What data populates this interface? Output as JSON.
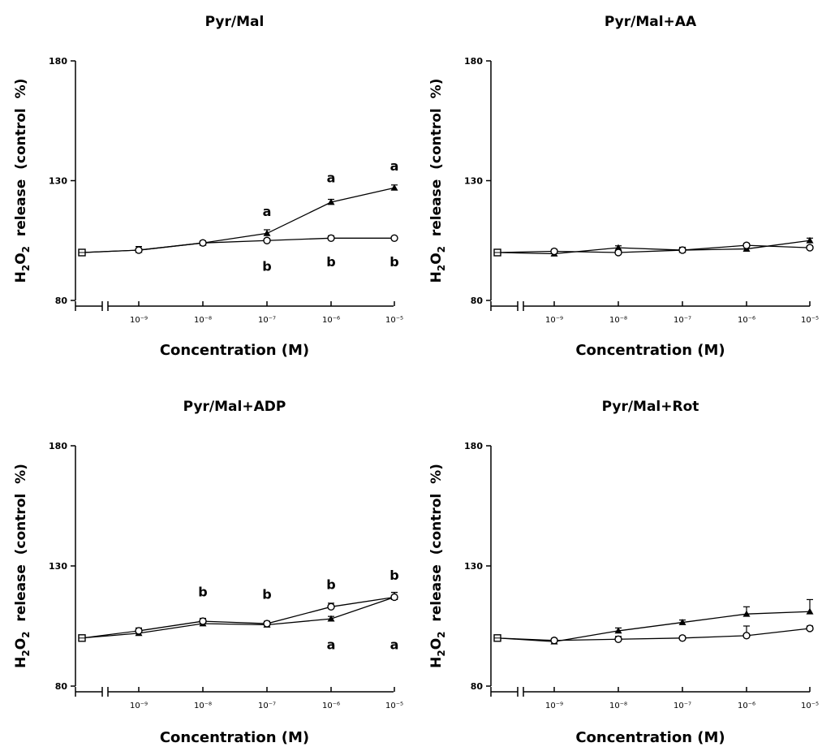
{
  "chart_data": [
    {
      "type": "line",
      "title": "Pyr/Mal",
      "xlabel": "Concentration (M)",
      "ylabel": "H2O2 release (control %)",
      "ylim": [
        80,
        180
      ],
      "yticks": [
        80,
        130,
        180
      ],
      "x_control": "control",
      "x": [
        1e-09,
        1e-08,
        1e-07,
        1e-06,
        1e-05
      ],
      "x_tick_labels": [
        "10⁻⁹",
        "10⁻⁸",
        "10⁻⁷",
        "10⁻⁶",
        "10⁻⁵"
      ],
      "control_value": 100,
      "series": [
        {
          "marker": "triangle",
          "values": [
            101,
            104,
            108,
            121,
            127
          ],
          "errors": [
            1.5,
            0.8,
            1.5,
            1.2,
            1.2
          ]
        },
        {
          "marker": "circle",
          "values": [
            101,
            104,
            105,
            106,
            106
          ],
          "errors": [
            1.5,
            0.8,
            0.8,
            1.0,
            0.6
          ]
        }
      ],
      "annotations": [
        {
          "x": 1e-07,
          "y": 117,
          "text": "a"
        },
        {
          "x": 1e-06,
          "y": 131,
          "text": "a"
        },
        {
          "x": 1e-05,
          "y": 136,
          "text": "a"
        },
        {
          "x": 1e-07,
          "y": 94,
          "text": "b"
        },
        {
          "x": 1e-06,
          "y": 96,
          "text": "b"
        },
        {
          "x": 1e-05,
          "y": 96,
          "text": "b"
        }
      ]
    },
    {
      "type": "line",
      "title": "Pyr/Mal+AA",
      "xlabel": "Concentration (M)",
      "ylabel": "H2O2 release (control %)",
      "ylim": [
        80,
        180
      ],
      "yticks": [
        80,
        130,
        180
      ],
      "x_control": "control",
      "x": [
        1e-09,
        1e-08,
        1e-07,
        1e-06,
        1e-05
      ],
      "x_tick_labels": [
        "10⁻⁹",
        "10⁻⁸",
        "10⁻⁷",
        "10⁻⁶",
        "10⁻⁵"
      ],
      "control_value": 100,
      "series": [
        {
          "marker": "triangle",
          "values": [
            99.5,
            102,
            101,
            101.5,
            105
          ],
          "errors": [
            0.8,
            0.8,
            1.2,
            0.8,
            1.0
          ]
        },
        {
          "marker": "circle",
          "values": [
            100.5,
            100,
            101,
            103,
            102
          ],
          "errors": [
            0.8,
            0.8,
            1.0,
            0.8,
            0.8
          ]
        }
      ],
      "annotations": []
    },
    {
      "type": "line",
      "title": "Pyr/Mal+ADP",
      "xlabel": "Concentration (M)",
      "ylabel": "H2O2 release (control %)",
      "ylim": [
        80,
        180
      ],
      "yticks": [
        80,
        130,
        180
      ],
      "x_control": "control",
      "x": [
        1e-09,
        1e-08,
        1e-07,
        1e-06,
        1e-05
      ],
      "x_tick_labels": [
        "10⁻⁹",
        "10⁻⁸",
        "10⁻⁷",
        "10⁻⁶",
        "10⁻⁵"
      ],
      "control_value": 100,
      "series": [
        {
          "marker": "triangle",
          "values": [
            102,
            106,
            105.5,
            108,
            117
          ],
          "errors": [
            1.0,
            1.5,
            1.0,
            1.0,
            2.0
          ]
        },
        {
          "marker": "circle",
          "values": [
            103,
            107,
            106,
            113,
            117
          ],
          "errors": [
            1.2,
            1.2,
            1.0,
            1.5,
            2.0
          ]
        }
      ],
      "annotations": [
        {
          "x": 1e-08,
          "y": 119,
          "text": "b"
        },
        {
          "x": 1e-07,
          "y": 118,
          "text": "b"
        },
        {
          "x": 1e-06,
          "y": 122,
          "text": "b"
        },
        {
          "x": 1e-05,
          "y": 126,
          "text": "b"
        },
        {
          "x": 1e-06,
          "y": 97,
          "text": "a"
        },
        {
          "x": 1e-05,
          "y": 97,
          "text": "a"
        }
      ]
    },
    {
      "type": "line",
      "title": "Pyr/Mal+Rot",
      "xlabel": "Concentration (M)",
      "ylabel": "H2O2 release (control %)",
      "ylim": [
        80,
        180
      ],
      "yticks": [
        80,
        130,
        180
      ],
      "x_control": "control",
      "x": [
        1e-09,
        1e-08,
        1e-07,
        1e-06,
        1e-05
      ],
      "x_tick_labels": [
        "10⁻⁹",
        "10⁻⁸",
        "10⁻⁷",
        "10⁻⁶",
        "10⁻⁵"
      ],
      "control_value": 100,
      "series": [
        {
          "marker": "triangle",
          "values": [
            98.5,
            103,
            106.5,
            110,
            111
          ],
          "errors": [
            0.8,
            1.2,
            1.0,
            3.0,
            5.0
          ]
        },
        {
          "marker": "circle",
          "values": [
            99,
            99.5,
            100,
            101,
            104
          ],
          "errors": [
            0.8,
            1.2,
            0.8,
            4.0,
            1.0
          ]
        }
      ],
      "annotations": []
    }
  ]
}
